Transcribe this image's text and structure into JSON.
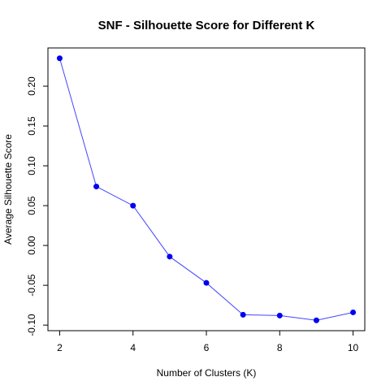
{
  "chart_data": {
    "type": "line",
    "title": "SNF - Silhouette Score for Different K",
    "xlabel": "Number of Clusters (K)",
    "ylabel": "Average Silhouette Score",
    "x": [
      2,
      3,
      4,
      5,
      6,
      7,
      8,
      9,
      10
    ],
    "series": [
      {
        "values": [
          0.235,
          0.074,
          0.05,
          -0.014,
          -0.047,
          -0.087,
          -0.088,
          -0.094,
          -0.084
        ]
      }
    ],
    "xticks": [
      "2",
      "4",
      "6",
      "8",
      "10"
    ],
    "yticks": [
      "-0.10",
      "-0.05",
      "0.00",
      "0.05",
      "0.10",
      "0.15",
      "0.20"
    ],
    "xlim": [
      1.68,
      10.32
    ],
    "ylim": [
      -0.107,
      0.248
    ],
    "grid": false,
    "colors": {
      "line": "#4444ff",
      "point": "#0000ee"
    }
  }
}
